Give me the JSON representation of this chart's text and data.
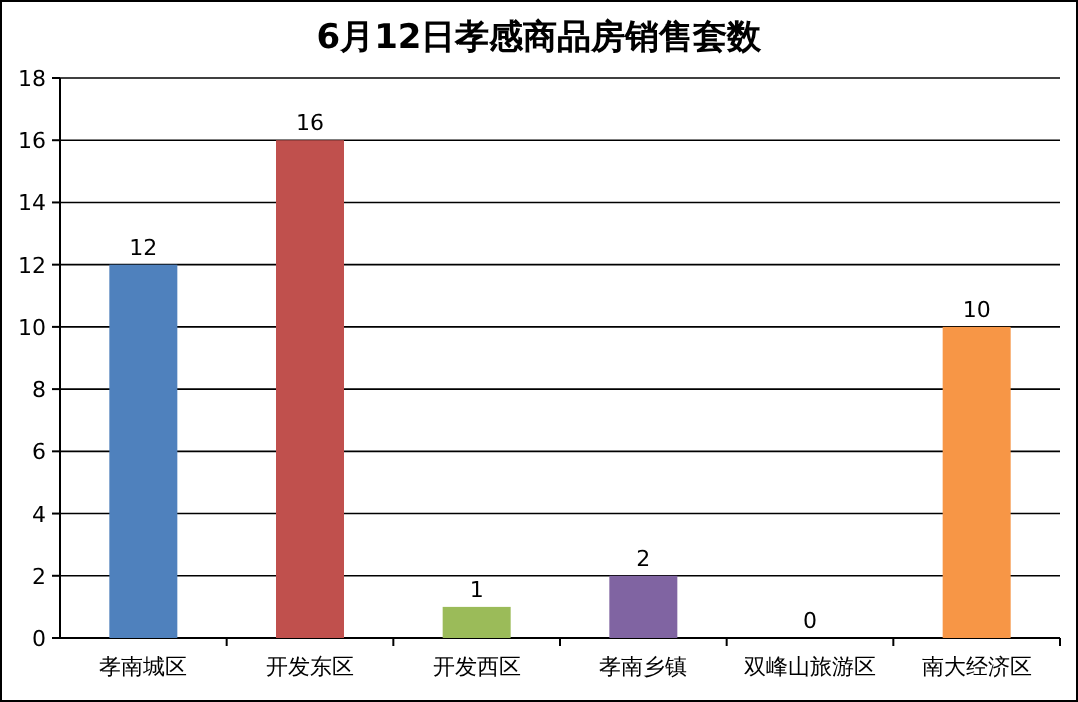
{
  "chart_data": {
    "type": "bar",
    "title": "6月12日孝感商品房销售套数",
    "categories": [
      "孝南城区",
      "开发东区",
      "开发西区",
      "孝南乡镇",
      "双峰山旅游区",
      "南大经济区"
    ],
    "values": [
      12,
      16,
      1,
      2,
      0,
      10
    ],
    "colors": [
      "#4f81bd",
      "#c0504d",
      "#9bbb59",
      "#8064a2",
      "#4bacc6",
      "#f79646"
    ],
    "ylim": [
      0,
      18
    ],
    "yticks": [
      0,
      2,
      4,
      6,
      8,
      10,
      12,
      14,
      16,
      18
    ],
    "grid": "y",
    "data_labels": true
  }
}
